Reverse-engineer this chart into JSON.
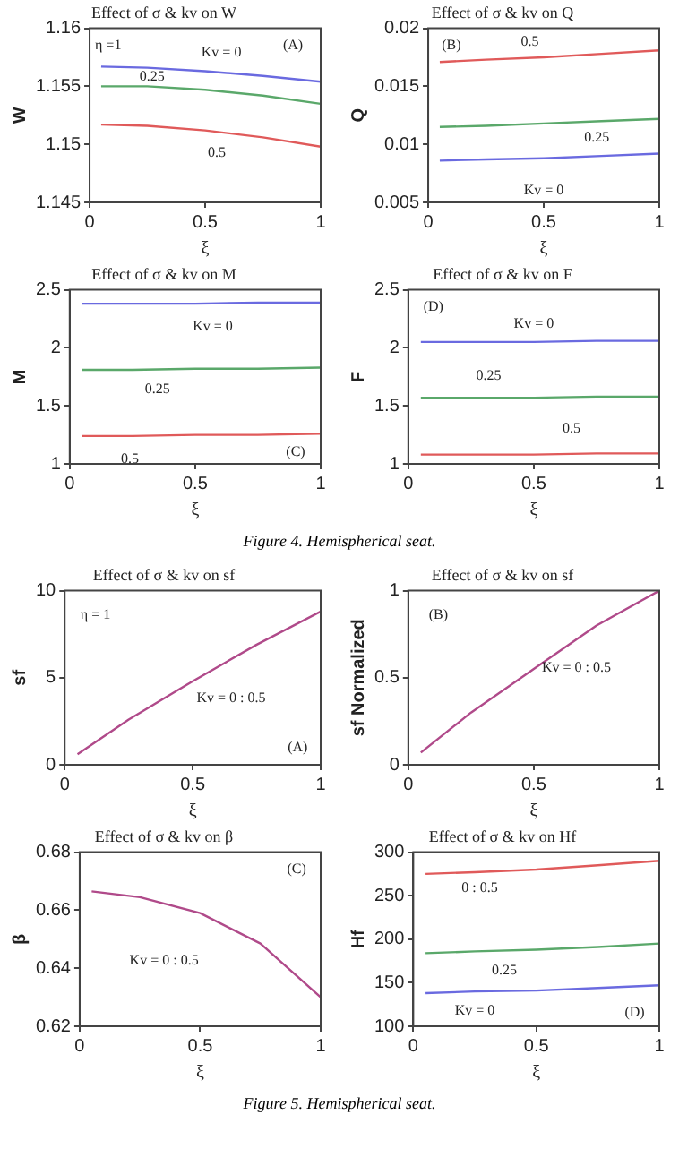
{
  "chart_data": [
    {
      "type": "line",
      "title": "Effect of σ & kv on W",
      "xlabel": "ξ",
      "ylabel": "W",
      "x": [
        0.05,
        0.25,
        0.5,
        0.75,
        1
      ],
      "xlim": [
        0,
        1
      ],
      "xticks": [
        0,
        0.5,
        1
      ],
      "ylim": [
        1.145,
        1.16
      ],
      "yticks": [
        1.145,
        1.15,
        1.155,
        1.16
      ],
      "grid": false,
      "legend": false,
      "series": [
        {
          "name": "Kv = 0",
          "color": "#6a6ae0",
          "values": [
            1.1567,
            1.1566,
            1.1563,
            1.1559,
            1.1554
          ]
        },
        {
          "name": "0.25",
          "color": "#5aa86a",
          "values": [
            1.155,
            1.155,
            1.1547,
            1.1542,
            1.1535
          ]
        },
        {
          "name": "0.5",
          "color": "#e05a5a",
          "values": [
            1.1517,
            1.1516,
            1.1512,
            1.1506,
            1.1498
          ]
        }
      ],
      "annotations": [
        "η =1",
        "(A)"
      ]
    },
    {
      "type": "line",
      "title": "Effect of σ & kv on Q",
      "xlabel": "ξ",
      "ylabel": "Q",
      "x": [
        0.05,
        0.25,
        0.5,
        0.75,
        1
      ],
      "xlim": [
        0,
        1
      ],
      "xticks": [
        0,
        0.5,
        1
      ],
      "ylim": [
        0.005,
        0.02
      ],
      "yticks": [
        0.005,
        0.01,
        0.015,
        0.02
      ],
      "grid": false,
      "legend": false,
      "series": [
        {
          "name": "0.5",
          "color": "#e05a5a",
          "values": [
            0.0171,
            0.0173,
            0.0175,
            0.0178,
            0.0181
          ]
        },
        {
          "name": "0.25",
          "color": "#5aa86a",
          "values": [
            0.0115,
            0.0116,
            0.0118,
            0.012,
            0.0122
          ]
        },
        {
          "name": "Kv = 0",
          "color": "#6a6ae0",
          "values": [
            0.0086,
            0.0087,
            0.0088,
            0.009,
            0.0092
          ]
        }
      ],
      "annotations": [
        "(B)"
      ]
    },
    {
      "type": "line",
      "title": "Effect of σ & kv on M",
      "xlabel": "ξ",
      "ylabel": "M",
      "x": [
        0.05,
        0.25,
        0.5,
        0.75,
        1
      ],
      "xlim": [
        0,
        1
      ],
      "xticks": [
        0,
        0.5,
        1
      ],
      "ylim": [
        1,
        2.5
      ],
      "yticks": [
        1,
        1.5,
        2,
        2.5
      ],
      "grid": false,
      "legend": false,
      "series": [
        {
          "name": "Kv = 0",
          "color": "#6a6ae0",
          "values": [
            2.38,
            2.38,
            2.38,
            2.39,
            2.39
          ]
        },
        {
          "name": "0.25",
          "color": "#5aa86a",
          "values": [
            1.81,
            1.81,
            1.82,
            1.82,
            1.83
          ]
        },
        {
          "name": "0.5",
          "color": "#e05a5a",
          "values": [
            1.24,
            1.24,
            1.25,
            1.25,
            1.26
          ]
        }
      ],
      "annotations": [
        "(C)"
      ]
    },
    {
      "type": "line",
      "title": "Effect of σ & kv on F",
      "xlabel": "ξ",
      "ylabel": "F",
      "x": [
        0.05,
        0.25,
        0.5,
        0.75,
        1
      ],
      "xlim": [
        0,
        1
      ],
      "xticks": [
        0,
        0.5,
        1
      ],
      "ylim": [
        1,
        2.5
      ],
      "yticks": [
        1,
        1.5,
        2,
        2.5
      ],
      "grid": false,
      "legend": false,
      "series": [
        {
          "name": "Kv = 0",
          "color": "#6a6ae0",
          "values": [
            2.05,
            2.05,
            2.05,
            2.06,
            2.06
          ]
        },
        {
          "name": "0.25",
          "color": "#5aa86a",
          "values": [
            1.57,
            1.57,
            1.57,
            1.58,
            1.58
          ]
        },
        {
          "name": "0.5",
          "color": "#e05a5a",
          "values": [
            1.08,
            1.08,
            1.08,
            1.09,
            1.09
          ]
        }
      ],
      "annotations": [
        "(D)",
        "Figure 4. Hemispherical seat."
      ]
    },
    {
      "type": "line",
      "title": "Effect of σ & kv on sf",
      "xlabel": "ξ",
      "ylabel": "sf",
      "x": [
        0.05,
        0.25,
        0.5,
        0.75,
        1
      ],
      "xlim": [
        0,
        1
      ],
      "xticks": [
        0,
        0.5,
        1
      ],
      "ylim": [
        0,
        10
      ],
      "yticks": [
        0,
        5,
        10
      ],
      "grid": false,
      "legend": false,
      "series": [
        {
          "name": "Kv = 0 : 0.5",
          "color": "#b04a8a",
          "values": [
            0.6,
            2.6,
            4.8,
            6.9,
            8.8
          ]
        }
      ],
      "annotations": [
        "η = 1",
        "(A)"
      ]
    },
    {
      "type": "line",
      "title": "Effect of σ & kv on sf",
      "xlabel": "ξ",
      "ylabel": "sf Normalized",
      "x": [
        0.05,
        0.25,
        0.5,
        0.75,
        1
      ],
      "xlim": [
        0,
        1
      ],
      "xticks": [
        0,
        0.5,
        1
      ],
      "ylim": [
        0,
        1
      ],
      "yticks": [
        0,
        0.5,
        1
      ],
      "grid": false,
      "legend": false,
      "series": [
        {
          "name": "Kv = 0 : 0.5",
          "color": "#b04a8a",
          "values": [
            0.07,
            0.3,
            0.55,
            0.8,
            1
          ]
        }
      ],
      "annotations": [
        "(B)"
      ]
    },
    {
      "type": "line",
      "title": "Effect of σ & kv on β",
      "xlabel": "ξ",
      "ylabel": "β",
      "x": [
        0.05,
        0.25,
        0.5,
        0.75,
        1
      ],
      "xlim": [
        0,
        1
      ],
      "xticks": [
        0,
        0.5,
        1
      ],
      "ylim": [
        0.62,
        0.68
      ],
      "yticks": [
        0.62,
        0.64,
        0.66,
        0.68
      ],
      "grid": false,
      "legend": false,
      "series": [
        {
          "name": "Kv = 0 : 0.5",
          "color": "#b04a8a",
          "values": [
            0.6665,
            0.6645,
            0.659,
            0.6485,
            0.63
          ]
        }
      ],
      "annotations": [
        "(C)"
      ]
    },
    {
      "type": "line",
      "title": "Effect of σ & kv on Hf",
      "xlabel": "ξ",
      "ylabel": "Hf",
      "x": [
        0.05,
        0.25,
        0.5,
        0.75,
        1
      ],
      "xlim": [
        0,
        1
      ],
      "xticks": [
        0,
        0.5,
        1
      ],
      "ylim": [
        100,
        300
      ],
      "yticks": [
        100,
        150,
        200,
        250,
        300
      ],
      "grid": false,
      "legend": false,
      "series": [
        {
          "name": "0 : 0.5",
          "color": "#e05a5a",
          "values": [
            275,
            277,
            280,
            285,
            290
          ]
        },
        {
          "name": "0.25",
          "color": "#5aa86a",
          "values": [
            184,
            186,
            188,
            191,
            195
          ]
        },
        {
          "name": "Kv = 0",
          "color": "#6a6ae0",
          "values": [
            138,
            140,
            141,
            144,
            147
          ]
        }
      ],
      "annotations": [
        "(D)",
        "Figure 5. Hemispherical seat."
      ]
    }
  ]
}
